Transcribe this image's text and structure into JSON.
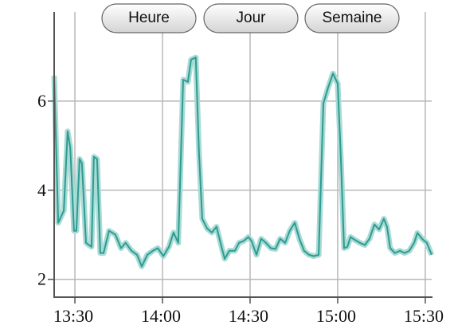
{
  "chart_data": {
    "type": "line",
    "x": [
      802.9,
      804.3,
      806.2,
      807.5,
      808.4,
      809.7,
      810.5,
      811.6,
      812.4,
      813.8,
      815.7,
      816.5,
      817.6,
      818.7,
      819.8,
      821.7,
      823.9,
      825.8,
      827.4,
      829.4,
      831.3,
      832.9,
      834.8,
      836.7,
      838.4,
      840.3,
      842.2,
      843.8,
      845.4,
      847.1,
      848.7,
      849.8,
      851.4,
      852.5,
      853.6,
      855.3,
      856.9,
      858.5,
      860.2,
      861.3,
      862.9,
      864.8,
      866.2,
      867.8,
      869.4,
      870.5,
      872.2,
      873.8,
      875.4,
      877.1,
      878.7,
      880.3,
      882.0,
      883.6,
      885.3,
      886.9,
      888.5,
      890.2,
      891.8,
      893.5,
      895.1,
      896.7,
      898.4,
      900.0,
      901.1,
      902.2,
      903.3,
      904.4,
      906.0,
      907.6,
      909.3,
      910.9,
      912.6,
      914.2,
      915.8,
      916.9,
      918.0,
      919.6,
      921.3,
      922.9,
      924.5,
      926.2,
      927.3,
      928.9,
      930.5,
      932.2
    ],
    "series": [
      {
        "color": "#2e9b93",
        "band_color": "#a9dbd5",
        "values": [
          6.57,
          3.27,
          3.54,
          5.32,
          4.96,
          3.09,
          3.09,
          4.7,
          4.61,
          2.82,
          2.73,
          4.75,
          4.7,
          2.59,
          2.59,
          3.09,
          3.0,
          2.7,
          2.82,
          2.64,
          2.55,
          2.29,
          2.55,
          2.64,
          2.7,
          2.52,
          2.73,
          3.05,
          2.82,
          6.48,
          6.43,
          6.93,
          6.98,
          4.87,
          3.36,
          3.14,
          3.05,
          3.18,
          2.73,
          2.46,
          2.64,
          2.64,
          2.82,
          2.86,
          2.95,
          2.86,
          2.55,
          2.91,
          2.82,
          2.7,
          2.68,
          2.91,
          2.82,
          3.09,
          3.27,
          2.91,
          2.64,
          2.55,
          2.52,
          2.55,
          5.95,
          6.3,
          6.62,
          6.39,
          4.7,
          2.7,
          2.73,
          2.95,
          2.88,
          2.82,
          2.77,
          2.91,
          3.23,
          3.12,
          3.36,
          3.18,
          2.7,
          2.59,
          2.64,
          2.59,
          2.64,
          2.82,
          3.04,
          2.91,
          2.82,
          2.55
        ]
      }
    ],
    "xlim": [
      802.9,
      932.2
    ],
    "xticks": [
      {
        "value": 810,
        "label": "13:30"
      },
      {
        "value": 840,
        "label": "14:00"
      },
      {
        "value": 870,
        "label": "14:30"
      },
      {
        "value": 900,
        "label": "15:00"
      },
      {
        "value": 930,
        "label": "15:30"
      }
    ],
    "ylim": [
      1.6,
      8
    ],
    "yticks": [
      2,
      4,
      6
    ],
    "grid": true
  },
  "buttons": [
    "Heure",
    "Jour",
    "Semaine"
  ]
}
